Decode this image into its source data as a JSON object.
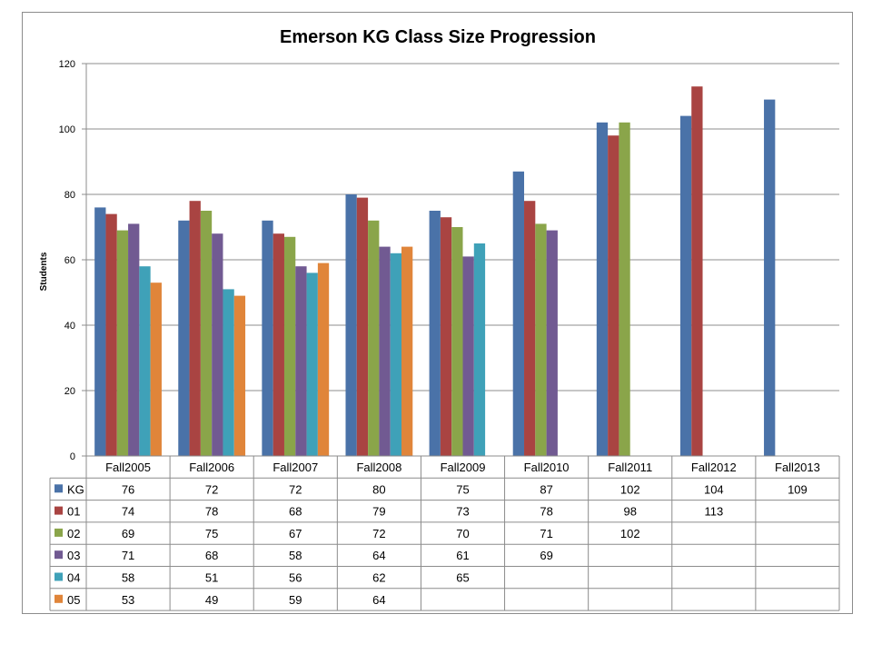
{
  "chart_data": {
    "type": "bar",
    "title": "Emerson KG Class Size Progression",
    "ylabel": "Students",
    "xlabel": "",
    "ylim": [
      0,
      120
    ],
    "yticks": [
      0,
      20,
      40,
      60,
      80,
      100,
      120
    ],
    "grid": true,
    "legend": "data table below chart",
    "categories": [
      "Fall2005",
      "Fall2006",
      "Fall2007",
      "Fall2008",
      "Fall2009",
      "Fall2010",
      "Fall2011",
      "Fall2012",
      "Fall2013"
    ],
    "series": [
      {
        "name": "KG",
        "color": "#4a72a8",
        "values": [
          76,
          72,
          72,
          80,
          75,
          87,
          102,
          104,
          109
        ]
      },
      {
        "name": "01",
        "color": "#a94442",
        "values": [
          74,
          78,
          68,
          79,
          73,
          78,
          98,
          113,
          null
        ]
      },
      {
        "name": "02",
        "color": "#8aa54a",
        "values": [
          69,
          75,
          67,
          72,
          70,
          71,
          102,
          null,
          null
        ]
      },
      {
        "name": "03",
        "color": "#715a92",
        "values": [
          71,
          68,
          58,
          64,
          61,
          69,
          null,
          null,
          null
        ]
      },
      {
        "name": "04",
        "color": "#3fa1b8",
        "values": [
          58,
          51,
          56,
          62,
          65,
          null,
          null,
          null,
          null
        ]
      },
      {
        "name": "05",
        "color": "#e0853a",
        "values": [
          53,
          49,
          59,
          64,
          null,
          null,
          null,
          null,
          null
        ]
      }
    ]
  }
}
